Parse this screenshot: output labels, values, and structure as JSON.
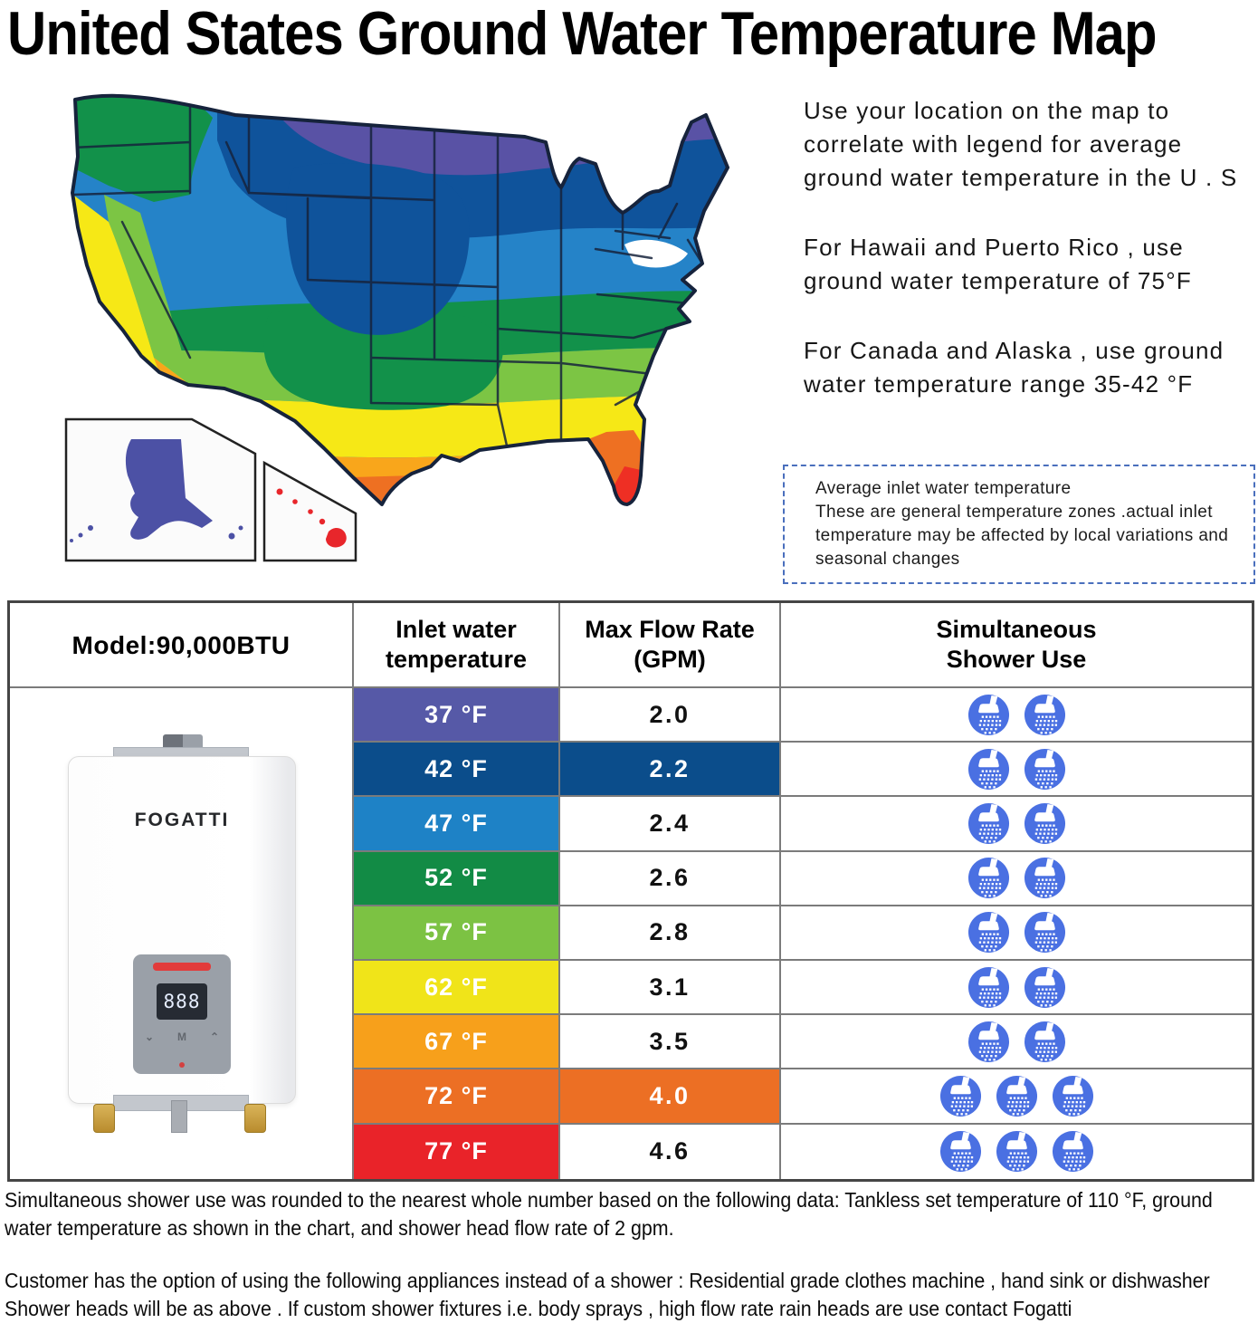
{
  "page": {
    "title": "United States Ground Water Temperature Map",
    "background": "#ffffff"
  },
  "map": {
    "region_label": "Contiguous United States ground water temperature zones",
    "insets": [
      {
        "name": "Alaska",
        "color": "#4c51a5"
      },
      {
        "name": "Hawaii",
        "color": "#e8262b"
      }
    ],
    "zones": [
      {
        "temp": "37 °F",
        "color": "#5952a5"
      },
      {
        "temp": "42 °F",
        "color": "#0f539b"
      },
      {
        "temp": "47 °F",
        "color": "#2583c8"
      },
      {
        "temp": "52 °F",
        "color": "#12914a"
      },
      {
        "temp": "57 °F",
        "color": "#7cc544"
      },
      {
        "temp": "62 °F",
        "color": "#f6e816"
      },
      {
        "temp": "67 °F",
        "color": "#f9a61b"
      },
      {
        "temp": "72 °F",
        "color": "#ee7022"
      },
      {
        "temp": "77 °F",
        "color": "#ee2f24"
      }
    ],
    "outline_color": "#16233c"
  },
  "instructions": {
    "paragraphs": [
      "Use your location on the map to correlate with legend for average ground water temperature in the U . S",
      "For Hawaii and Puerto Rico , use ground water temperature of 75°F",
      "For Canada and Alaska , use ground water temperature range 35-42 °F"
    ],
    "callout": {
      "title": "Average inlet water temperature",
      "body": "These are general temperature zones .actual inlet temperature may be affected by local variations and seasonal changes",
      "border_color": "#4a6fbd"
    }
  },
  "table": {
    "model_label": "Model:90,000BTU",
    "headers": [
      "Inlet water\ntemperature",
      "Max Flow Rate\n(GPM)",
      "Simultaneous\nShower Use"
    ],
    "shower_icon_color": "#4a70e2",
    "rows": [
      {
        "temp": "37 °F",
        "zone_color": "#5659a7",
        "flow": "2.0",
        "flow_bg": "#ffffff",
        "flow_text": "#111111",
        "showers": 2
      },
      {
        "temp": "42 °F",
        "zone_color": "#0b4d8b",
        "flow": "2.2",
        "flow_bg": "#0b4d8b",
        "flow_text": "#ffffff",
        "showers": 2
      },
      {
        "temp": "47 °F",
        "zone_color": "#1e82c6",
        "flow": "2.4",
        "flow_bg": "#ffffff",
        "flow_text": "#111111",
        "showers": 2
      },
      {
        "temp": "52 °F",
        "zone_color": "#128b45",
        "flow": "2.6",
        "flow_bg": "#ffffff",
        "flow_text": "#111111",
        "showers": 2
      },
      {
        "temp": "57 °F",
        "zone_color": "#7cc243",
        "flow": "2.8",
        "flow_bg": "#ffffff",
        "flow_text": "#111111",
        "showers": 2
      },
      {
        "temp": "62 °F",
        "zone_color": "#f0e419",
        "flow": "3.1",
        "flow_bg": "#ffffff",
        "flow_text": "#111111",
        "showers": 2
      },
      {
        "temp": "67 °F",
        "zone_color": "#f7a01b",
        "flow": "3.5",
        "flow_bg": "#ffffff",
        "flow_text": "#111111",
        "showers": 2
      },
      {
        "temp": "72 °F",
        "zone_color": "#ec6f24",
        "flow": "4.0",
        "flow_bg": "#ec6f24",
        "flow_text": "#ffffff",
        "showers": 3
      },
      {
        "temp": "77 °F",
        "zone_color": "#e92329",
        "flow": "4.6",
        "flow_bg": "#ffffff",
        "flow_text": "#111111",
        "showers": 3
      }
    ]
  },
  "product": {
    "brand": "FOGATTI",
    "display_value": "888"
  },
  "footnotes": [
    "Simultaneous shower use was rounded to the nearest whole number based on the following data: Tankless set temperature of 110 °F, ground water temperature as shown in the chart, and shower head flow rate of 2 gpm.",
    "Customer has the option of using the following appliances instead of a shower : Residential grade clothes machine , hand sink or dishwasher",
    "Shower heads will be as above . If custom shower fixtures i.e. body sprays , high flow rate rain heads are use contact Fogatti"
  ]
}
